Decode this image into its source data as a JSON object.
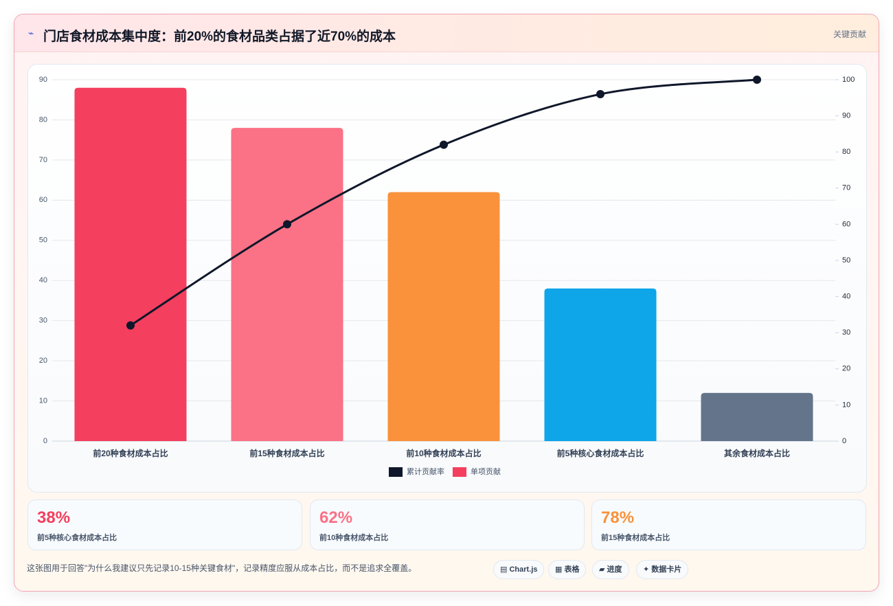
{
  "header": {
    "title": "门店食材成本集中度：前20%的食材品类占据了近70%的成本",
    "badge": "关键贡献"
  },
  "chart_data": {
    "type": "bar",
    "categories": [
      "前20种食材成本占比",
      "前15种食材成本占比",
      "前10种食材成本占比",
      "前5种核心食材成本占比",
      "其余食材成本占比"
    ],
    "series": [
      {
        "name": "累计贡献率",
        "type": "line",
        "color": "#0f172a",
        "axis": "y2",
        "values": [
          32,
          60,
          82,
          96,
          100
        ]
      },
      {
        "name": "单项贡献",
        "type": "bar",
        "color": "#f43f5e",
        "colors": [
          "#f43f5e",
          "#fb7185",
          "#f9923b",
          "#0ea5e9",
          "#64748b"
        ],
        "values": [
          88,
          78,
          62,
          38,
          12
        ]
      }
    ],
    "ylim": [
      0,
      90
    ],
    "yticks": [
      0,
      10,
      20,
      30,
      40,
      50,
      60,
      70,
      80,
      90
    ],
    "y2lim": [
      0,
      100
    ],
    "y2ticks": [
      0,
      10,
      20,
      30,
      40,
      50,
      60,
      70,
      80,
      90,
      100
    ],
    "grid": true,
    "legend": "bottom"
  },
  "cards": [
    {
      "value": "38%",
      "label": "前5种核心食材成本占比",
      "color": "#f43f5e"
    },
    {
      "value": "62%",
      "label": "前10种食材成本占比",
      "color": "#fb7185"
    },
    {
      "value": "78%",
      "label": "前15种食材成本占比",
      "color": "#f9923b"
    }
  ],
  "footer": {
    "note": "这张图用于回答\"为什么我建议只先记录10-15种关键食材\"，记录精度应服从成本占比，而不是追求全覆盖。",
    "buttons": [
      "Chart.js",
      "表格",
      "进度",
      "数据卡片"
    ]
  }
}
